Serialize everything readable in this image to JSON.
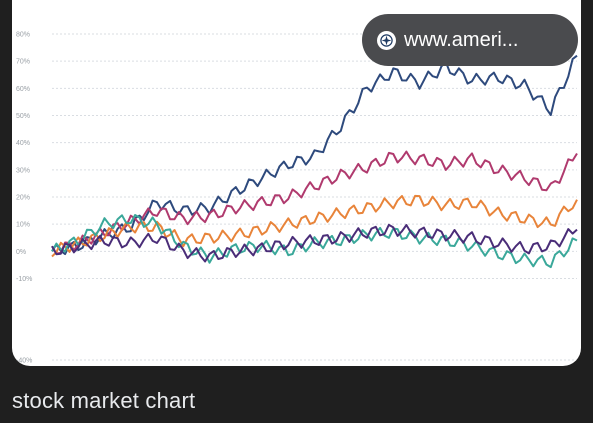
{
  "result_card": {
    "source_label": "www.ameri...",
    "caption": "stock market chart",
    "source_icon": "compass-icon"
  },
  "chart_data": {
    "type": "line",
    "ylim": [
      -40,
      80
    ],
    "y_ticks": [
      80,
      70,
      60,
      50,
      40,
      30,
      20,
      10,
      0,
      -10,
      -40
    ],
    "y_tick_labels": [
      "80%",
      "70%",
      "60%",
      "50%",
      "40%",
      "30%",
      "20%",
      "10%",
      "0%",
      "-10%",
      "-40%"
    ],
    "grid": true,
    "series": [
      {
        "color": "#2e4a7d",
        "points": [
          [
            0,
            0
          ],
          [
            5,
            2
          ],
          [
            10,
            6
          ],
          [
            15,
            9
          ],
          [
            20,
            18
          ],
          [
            25,
            15
          ],
          [
            30,
            16
          ],
          [
            35,
            22
          ],
          [
            40,
            27
          ],
          [
            45,
            32
          ],
          [
            50,
            35
          ],
          [
            55,
            46
          ],
          [
            60,
            60
          ],
          [
            65,
            66
          ],
          [
            70,
            62
          ],
          [
            75,
            68
          ],
          [
            80,
            63
          ],
          [
            85,
            64
          ],
          [
            90,
            61
          ],
          [
            95,
            52
          ],
          [
            100,
            72
          ]
        ]
      },
      {
        "color": "#b03a6e",
        "points": [
          [
            0,
            0
          ],
          [
            5,
            3
          ],
          [
            10,
            7
          ],
          [
            15,
            11
          ],
          [
            20,
            15
          ],
          [
            25,
            12
          ],
          [
            30,
            13
          ],
          [
            35,
            16
          ],
          [
            40,
            18
          ],
          [
            45,
            20
          ],
          [
            50,
            24
          ],
          [
            55,
            28
          ],
          [
            60,
            31
          ],
          [
            65,
            35
          ],
          [
            70,
            34
          ],
          [
            75,
            32
          ],
          [
            80,
            34
          ],
          [
            85,
            30
          ],
          [
            90,
            27
          ],
          [
            95,
            23
          ],
          [
            100,
            36
          ]
        ]
      },
      {
        "color": "#e8843a",
        "points": [
          [
            0,
            0
          ],
          [
            5,
            3
          ],
          [
            10,
            6
          ],
          [
            15,
            9
          ],
          [
            20,
            9
          ],
          [
            25,
            4
          ],
          [
            30,
            5
          ],
          [
            35,
            6
          ],
          [
            40,
            8
          ],
          [
            45,
            10
          ],
          [
            50,
            12
          ],
          [
            55,
            14
          ],
          [
            60,
            16
          ],
          [
            65,
            18
          ],
          [
            70,
            19
          ],
          [
            75,
            17
          ],
          [
            80,
            18
          ],
          [
            85,
            14
          ],
          [
            90,
            12
          ],
          [
            95,
            10
          ],
          [
            100,
            19
          ]
        ]
      },
      {
        "color": "#3aa89a",
        "points": [
          [
            0,
            0
          ],
          [
            5,
            4
          ],
          [
            10,
            10
          ],
          [
            15,
            12
          ],
          [
            20,
            10
          ],
          [
            25,
            2
          ],
          [
            30,
            -2
          ],
          [
            35,
            1
          ],
          [
            40,
            2
          ],
          [
            45,
            0
          ],
          [
            50,
            3
          ],
          [
            55,
            4
          ],
          [
            60,
            6
          ],
          [
            65,
            7
          ],
          [
            70,
            5
          ],
          [
            75,
            4
          ],
          [
            80,
            2
          ],
          [
            85,
            -1
          ],
          [
            90,
            -3
          ],
          [
            95,
            -4
          ],
          [
            100,
            4
          ]
        ]
      },
      {
        "color": "#4a2d78",
        "points": [
          [
            0,
            0
          ],
          [
            5,
            2
          ],
          [
            10,
            4
          ],
          [
            15,
            3
          ],
          [
            20,
            5
          ],
          [
            25,
            0
          ],
          [
            30,
            -2
          ],
          [
            35,
            0
          ],
          [
            40,
            1
          ],
          [
            45,
            3
          ],
          [
            50,
            4
          ],
          [
            55,
            5
          ],
          [
            60,
            7
          ],
          [
            65,
            8
          ],
          [
            70,
            7
          ],
          [
            75,
            6
          ],
          [
            80,
            5
          ],
          [
            85,
            3
          ],
          [
            90,
            1
          ],
          [
            95,
            2
          ],
          [
            100,
            8
          ]
        ]
      }
    ]
  }
}
